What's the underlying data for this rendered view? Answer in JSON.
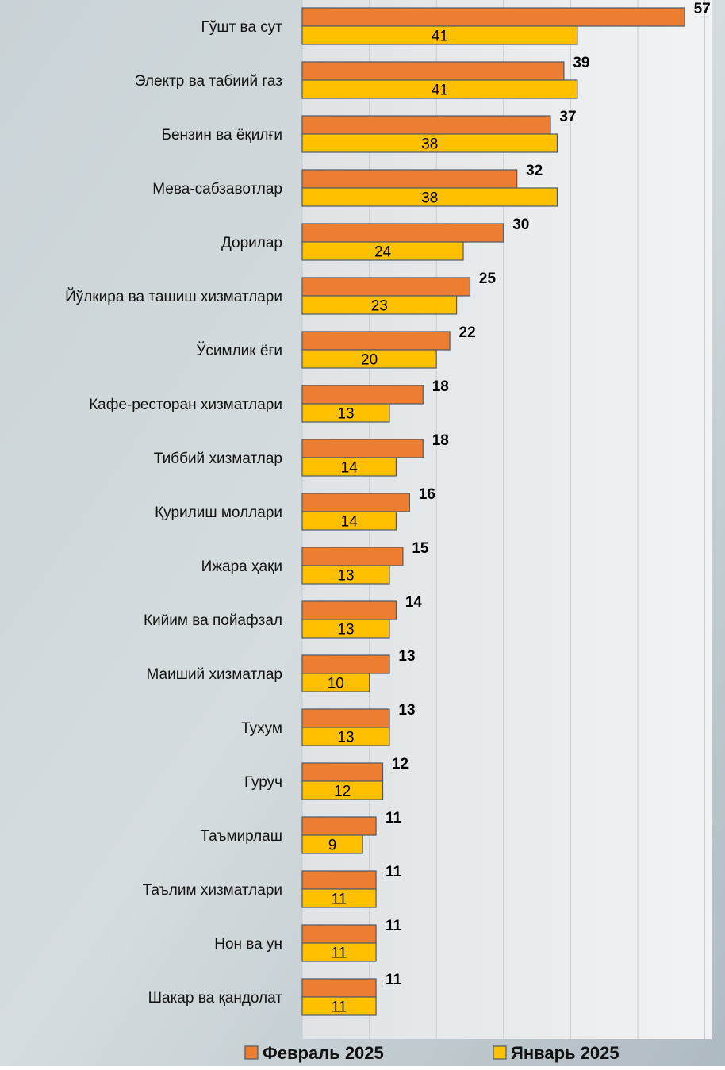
{
  "chart_data": {
    "type": "bar",
    "orientation": "horizontal",
    "categories": [
      "Гўшт ва сут",
      "Электр ва табиий газ",
      "Бензин ва ёқилғи",
      "Мева-сабзавотлар",
      "Дорилар",
      "Йўлкира ва ташиш хизматлари",
      "Ўсимлик ёғи",
      "Кафе-ресторан хизматлари",
      "Тиббий хизматлар",
      "Қурилиш моллари",
      "Ижара ҳақи",
      "Кийим ва пойафзал",
      "Маиший хизматлар",
      "Тухум",
      "Гуруч",
      "Таъмирлаш",
      "Таълим хизматлари",
      "Нон ва ун",
      "Шакар ва қандолат"
    ],
    "series": [
      {
        "name": "Февраль 2025",
        "color": "#ed7d31",
        "values": [
          57,
          39,
          37,
          32,
          30,
          25,
          22,
          18,
          18,
          16,
          15,
          14,
          13,
          13,
          12,
          11,
          11,
          11,
          11
        ]
      },
      {
        "name": "Январь 2025",
        "color": "#ffc000",
        "values": [
          41,
          41,
          38,
          38,
          24,
          23,
          20,
          13,
          14,
          14,
          13,
          13,
          10,
          13,
          12,
          9,
          11,
          11,
          11
        ]
      }
    ],
    "xlim": [
      0,
      61
    ],
    "xticks": [
      0,
      10,
      20,
      30,
      40,
      50,
      60
    ],
    "grid": true,
    "legend": "bottom"
  }
}
